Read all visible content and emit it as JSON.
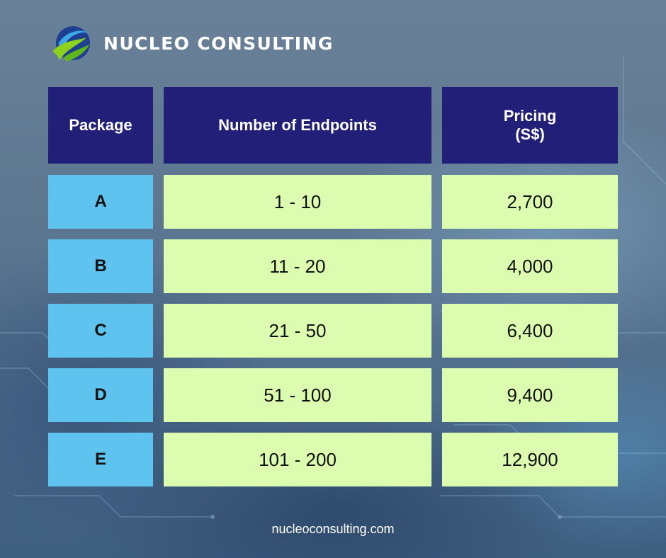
{
  "brand": {
    "name": "NUCLEO CONSULTING",
    "logo_icon": "nucleo-swoosh-logo",
    "colors": {
      "header_bg": "#221f78",
      "package_cell_bg": "#5ec3ef",
      "value_cell_bg": "#dcfcb0"
    }
  },
  "table": {
    "headers": {
      "package": "Package",
      "endpoints": "Number of Endpoints",
      "pricing_line1": "Pricing",
      "pricing_line2": "(S$)"
    },
    "rows": [
      {
        "package": "A",
        "endpoints": "1 - 10",
        "price": "2,700"
      },
      {
        "package": "B",
        "endpoints": "11 - 20",
        "price": "4,000"
      },
      {
        "package": "C",
        "endpoints": "21 - 50",
        "price": "6,400"
      },
      {
        "package": "D",
        "endpoints": "51 - 100",
        "price": "9,400"
      },
      {
        "package": "E",
        "endpoints": "101 - 200",
        "price": "12,900"
      }
    ]
  },
  "footer": {
    "website": "nucleoconsulting.com"
  }
}
